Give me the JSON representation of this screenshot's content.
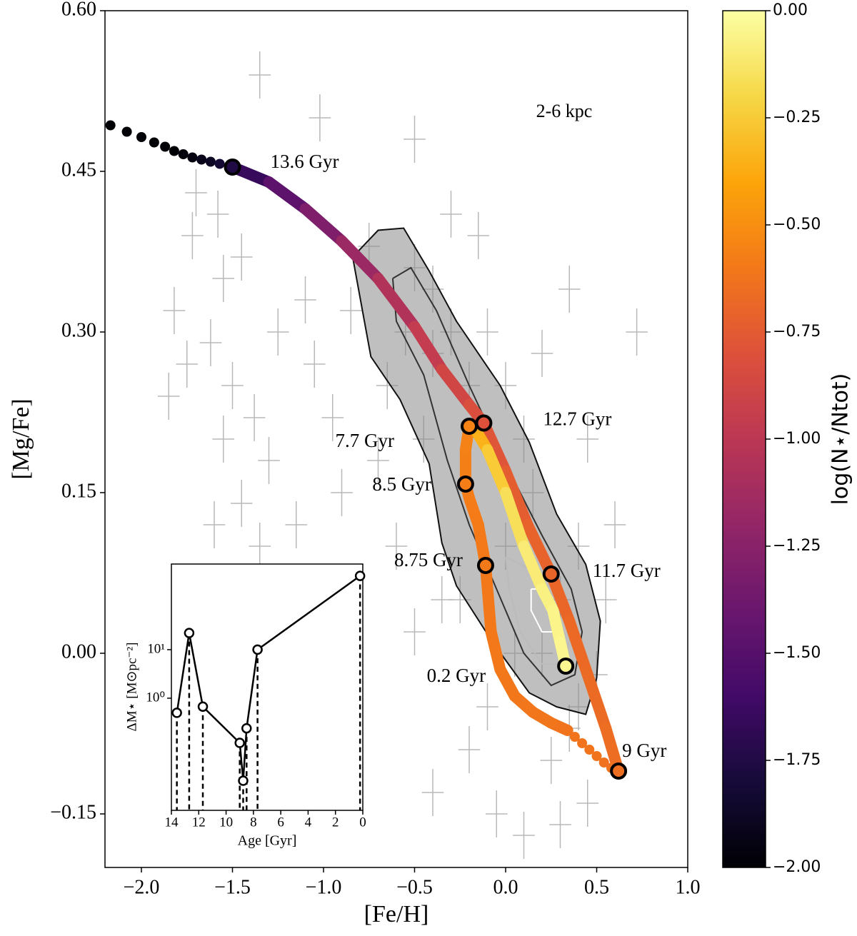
{
  "chart_data": [
    {
      "type": "track",
      "xlabel": "[Fe/H]",
      "ylabel": "[Mg/Fe]",
      "annotation": "2-6 kpc",
      "xlim": [
        -2.2,
        1.0
      ],
      "ylim": [
        -0.2,
        0.6
      ],
      "xticks": [
        {
          "value": -2.0,
          "label": "−2.0"
        },
        {
          "value": -1.5,
          "label": "−1.5"
        },
        {
          "value": -1.0,
          "label": "−1.0"
        },
        {
          "value": -0.5,
          "label": "−0.5"
        },
        {
          "value": 0.0,
          "label": "0.0"
        },
        {
          "value": 0.5,
          "label": "0.5"
        },
        {
          "value": 1.0,
          "label": "1.0"
        }
      ],
      "yticks": [
        {
          "value": 0.6,
          "label": "0.60"
        },
        0.45,
        {
          "value": 0.3,
          "label": "0.30"
        },
        0.15,
        {
          "value": 0.0,
          "label": "0.00"
        },
        {
          "value": -0.15,
          "label": "−0.15"
        }
      ],
      "stars": {
        "color": "#b8b8b8",
        "xerr": 0.06,
        "yerr": 0.022,
        "x": [
          -1.35,
          -1.02,
          -0.5,
          -1.7,
          -1.58,
          -1.72,
          -1.45,
          -1.55,
          -1.82,
          -1.62,
          -1.75,
          -1.85,
          -1.5,
          -1.38,
          -1.55,
          -1.3,
          -1.45,
          -1.6,
          -1.35,
          -1.25,
          -1.1,
          -1.05,
          -0.95,
          -0.85,
          -0.75,
          -0.9,
          -1.15,
          -0.65,
          -0.7,
          -0.55,
          -0.6,
          -0.4,
          -0.45,
          -0.35,
          -0.5,
          -0.3,
          -0.15,
          0.2,
          0.35,
          0.45,
          0.55,
          0.72,
          0.1,
          -0.05,
          0.3,
          -0.4,
          -0.2,
          0.45,
          0.6,
          -0.1,
          0.1,
          0.0,
          0.2,
          0.3,
          0.4,
          -0.2,
          -0.3,
          0.15,
          0.05,
          0.35,
          -0.25,
          0.25,
          -0.1,
          0.5,
          0.4,
          -0.4,
          -0.5,
          0.0
        ],
        "y": [
          0.54,
          0.5,
          0.48,
          0.43,
          0.41,
          0.39,
          0.37,
          0.35,
          0.32,
          0.29,
          0.27,
          0.24,
          0.25,
          0.22,
          0.2,
          0.18,
          0.14,
          0.12,
          0.1,
          0.3,
          0.33,
          0.27,
          0.22,
          0.32,
          0.38,
          0.15,
          0.12,
          0.25,
          0.18,
          0.3,
          0.1,
          0.34,
          0.2,
          0.05,
          0.02,
          0.41,
          0.39,
          0.28,
          0.34,
          0.2,
          0.05,
          0.3,
          -0.17,
          -0.15,
          -0.16,
          -0.13,
          -0.09,
          -0.14,
          0.12,
          0.3,
          0.2,
          0.1,
          0.0,
          0.05,
          -0.05,
          0.25,
          0.3,
          0.15,
          0.0,
          -0.07,
          0.05,
          -0.1,
          -0.05,
          -0.02,
          0.1,
          0.28,
          0.36,
          0.25
        ]
      },
      "contours": [
        {
          "color": "#111111",
          "fill": "#8a8a8a",
          "x": [
            -0.84,
            -0.7,
            -0.56,
            -0.42,
            -0.27,
            -0.03,
            0.13,
            0.28,
            0.44,
            0.52,
            0.5,
            0.44,
            0.28,
            0.13,
            -0.07,
            -0.27,
            -0.35,
            -0.42,
            -0.58,
            -0.74,
            -0.84
          ],
          "y": [
            0.37,
            0.395,
            0.397,
            0.357,
            0.31,
            0.25,
            0.197,
            0.13,
            0.083,
            0.03,
            -0.023,
            -0.057,
            -0.05,
            -0.037,
            0.01,
            0.063,
            0.103,
            0.177,
            0.237,
            0.277,
            0.37
          ]
        },
        {
          "color": "#333333",
          "x": [
            -0.62,
            -0.52,
            -0.38,
            -0.2,
            0.02,
            0.2,
            0.36,
            0.42,
            0.38,
            0.25,
            0.1,
            -0.05,
            -0.2,
            -0.32,
            -0.45,
            -0.6,
            -0.62
          ],
          "y": [
            0.35,
            0.36,
            0.32,
            0.25,
            0.17,
            0.11,
            0.06,
            0.02,
            -0.02,
            -0.03,
            0.0,
            0.06,
            0.12,
            0.18,
            0.26,
            0.31,
            0.35
          ]
        },
        {
          "color": "#bbbbbb",
          "x": [
            0.0,
            0.12,
            0.28,
            0.36,
            0.32,
            0.2,
            0.08,
            0.02,
            0.0
          ],
          "y": [
            0.09,
            0.08,
            0.05,
            0.02,
            -0.01,
            -0.01,
            0.02,
            0.06,
            0.09
          ]
        },
        {
          "color": "#ffffff",
          "x": [
            0.14,
            0.22,
            0.28,
            0.27,
            0.2,
            0.14,
            0.14
          ],
          "y": [
            0.06,
            0.06,
            0.04,
            0.02,
            0.02,
            0.04,
            0.06
          ]
        }
      ],
      "track": [
        {
          "style": "dots",
          "x": [
            -2.17,
            -2.08,
            -2.0,
            -1.93,
            -1.87,
            -1.82,
            -1.77,
            -1.72,
            -1.67,
            -1.62,
            -1.57
          ],
          "y": [
            0.493,
            0.487,
            0.482,
            0.477,
            0.473,
            0.469,
            0.466,
            0.463,
            0.461,
            0.459,
            0.457
          ],
          "c": [
            -2,
            -2,
            -2,
            -2,
            -2,
            -2,
            -1.98,
            -1.95,
            -1.92,
            -1.88,
            -1.82
          ]
        },
        {
          "style": "line",
          "x": [
            -1.5,
            -1.3,
            -1.1,
            -0.9,
            -0.7,
            -0.5,
            -0.35,
            -0.2,
            -0.12,
            0.0,
            0.12,
            0.25,
            0.35,
            0.45,
            0.55,
            0.62
          ],
          "y": [
            0.454,
            0.44,
            0.415,
            0.385,
            0.35,
            0.305,
            0.265,
            0.232,
            0.215,
            0.17,
            0.12,
            0.074,
            0.03,
            -0.02,
            -0.07,
            -0.11
          ],
          "c": [
            -1.75,
            -1.55,
            -1.38,
            -1.22,
            -1.1,
            -1.0,
            -0.92,
            -0.85,
            -0.8,
            -0.76,
            -0.72,
            -0.7,
            -0.68,
            -0.67,
            -0.66,
            -0.65
          ]
        },
        {
          "style": "dots",
          "x": [
            0.58,
            0.54,
            0.5,
            0.46,
            0.42,
            0.38
          ],
          "y": [
            -0.107,
            -0.102,
            -0.096,
            -0.09,
            -0.084,
            -0.078
          ],
          "c": [
            -0.63,
            -0.63,
            -0.62,
            -0.62,
            -0.62,
            -0.62
          ]
        },
        {
          "style": "line",
          "x": [
            0.34,
            0.25,
            0.15,
            0.05,
            -0.03,
            -0.08,
            -0.11,
            -0.15,
            -0.2,
            -0.22,
            -0.22,
            -0.2
          ],
          "y": [
            -0.072,
            -0.065,
            -0.055,
            -0.04,
            -0.015,
            0.02,
            0.082,
            0.12,
            0.145,
            0.158,
            0.19,
            0.212
          ],
          "c": [
            -0.62,
            -0.62,
            -0.61,
            -0.61,
            -0.6,
            -0.6,
            -0.6,
            -0.59,
            -0.58,
            -0.58,
            -0.56,
            -0.55
          ]
        },
        {
          "style": "line",
          "x": [
            -0.17,
            -0.1,
            0.0,
            0.1,
            0.2,
            0.26,
            0.3,
            0.33
          ],
          "y": [
            0.21,
            0.19,
            0.15,
            0.1,
            0.06,
            0.04,
            0.01,
            -0.012
          ],
          "c": [
            -0.4,
            -0.3,
            -0.2,
            -0.12,
            -0.08,
            -0.06,
            -0.05,
            -0.04
          ]
        }
      ],
      "markers": {
        "labels": [
          "13.6 Gyr",
          "12.7 Gyr",
          "11.7 Gyr",
          "9 Gyr",
          "8.75 Gyr",
          "8.5 Gyr",
          "7.7 Gyr",
          "0.2 Gyr"
        ],
        "x": [
          -1.5,
          -0.12,
          0.25,
          0.62,
          -0.11,
          -0.22,
          -0.2,
          0.33
        ],
        "y": [
          0.454,
          0.215,
          0.074,
          -0.11,
          0.082,
          0.158,
          0.212,
          -0.012
        ],
        "c": [
          -1.75,
          -0.8,
          -0.7,
          -0.65,
          -0.6,
          -0.58,
          -0.55,
          -0.04
        ]
      },
      "colorbar": {
        "label": "log(N⋆/Ntot)",
        "colormap": "inferno",
        "clim": [
          -2.0,
          0.0
        ],
        "ticks": [
          {
            "value": 0.0,
            "label": "0.00"
          },
          {
            "value": -0.25,
            "label": "−0.25"
          },
          {
            "value": -0.5,
            "label": "−0.50"
          },
          {
            "value": -0.75,
            "label": "−0.75"
          },
          {
            "value": -1.0,
            "label": "−1.00"
          },
          {
            "value": -1.25,
            "label": "−1.25"
          },
          {
            "value": -1.5,
            "label": "−1.50"
          },
          {
            "value": -1.75,
            "label": "−1.75"
          },
          {
            "value": -2.0,
            "label": "−2.00"
          }
        ]
      }
    },
    {
      "type": "line",
      "xlabel": "Age [Gyr]",
      "ylabel": "ΔM⋆ [M⊙pc⁻²]",
      "x": [
        13.6,
        12.7,
        11.7,
        9,
        8.75,
        8.5,
        7.7,
        0.2
      ],
      "values": [
        0.5,
        22,
        0.67,
        0.12,
        0.02,
        0.24,
        10,
        330
      ],
      "xlim": [
        14,
        0
      ],
      "ylim": [
        0.0049,
        580
      ],
      "log_y": true,
      "xticks": [
        14,
        12,
        10,
        8,
        6,
        4,
        2,
        0
      ],
      "yticks": [
        {
          "value": 1,
          "label": "10⁰"
        },
        {
          "value": 10,
          "label": "10¹"
        }
      ]
    }
  ]
}
